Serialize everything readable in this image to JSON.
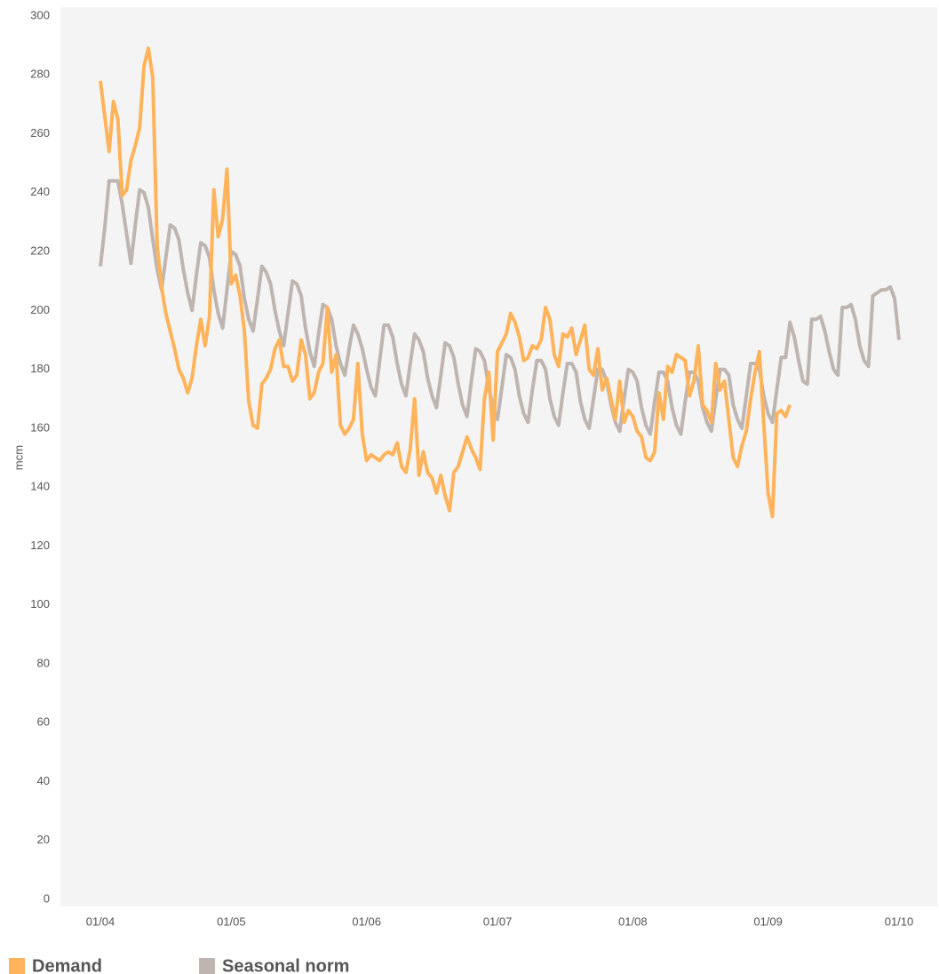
{
  "chart_data": {
    "type": "line",
    "y_label": "mcm",
    "categories": [
      "01/04",
      null,
      null,
      null,
      null,
      null,
      null,
      null,
      null,
      null,
      null,
      null,
      null,
      null,
      null,
      null,
      null,
      null,
      null,
      null,
      null,
      null,
      null,
      null,
      null,
      null,
      null,
      null,
      null,
      null,
      "01/05",
      null,
      null,
      null,
      null,
      null,
      null,
      null,
      null,
      null,
      null,
      null,
      null,
      null,
      null,
      null,
      null,
      null,
      null,
      null,
      null,
      null,
      null,
      null,
      null,
      null,
      null,
      null,
      null,
      null,
      null,
      "01/06",
      null,
      null,
      null,
      null,
      null,
      null,
      null,
      null,
      null,
      null,
      null,
      null,
      null,
      null,
      null,
      null,
      null,
      null,
      null,
      null,
      null,
      null,
      null,
      null,
      null,
      null,
      null,
      null,
      null,
      "01/07",
      null,
      null,
      null,
      null,
      null,
      null,
      null,
      null,
      null,
      null,
      null,
      null,
      null,
      null,
      null,
      null,
      null,
      null,
      null,
      null,
      null,
      null,
      null,
      null,
      null,
      null,
      null,
      null,
      null,
      null,
      "01/08",
      null,
      null,
      null,
      null,
      null,
      null,
      null,
      null,
      null,
      null,
      null,
      null,
      null,
      null,
      null,
      null,
      null,
      null,
      null,
      null,
      null,
      null,
      null,
      null,
      null,
      null,
      null,
      null,
      null,
      null,
      "01/09",
      null,
      null,
      null,
      null,
      null,
      null,
      null,
      null,
      null,
      null,
      null,
      null,
      null,
      null,
      null,
      null,
      null,
      null,
      null,
      null,
      null,
      null,
      null,
      null,
      null,
      null,
      null,
      null,
      null,
      "01/10"
    ],
    "series": [
      {
        "name": "Demand",
        "color": "#ffb35a",
        "values": [
          278,
          266,
          254,
          271,
          265,
          239,
          241,
          251,
          256,
          262,
          283,
          289,
          279,
          222,
          208,
          199,
          193,
          187,
          180,
          177,
          172,
          177,
          188,
          197,
          188,
          198,
          241,
          225,
          231,
          248,
          209,
          212,
          205,
          193,
          169,
          161,
          160,
          175,
          177,
          180,
          187,
          190,
          181,
          181,
          176,
          178,
          190,
          185,
          170,
          172,
          179,
          182,
          201,
          179,
          185,
          161,
          158,
          160,
          163,
          182,
          158,
          149,
          151,
          150,
          149,
          151,
          152,
          151,
          155,
          147,
          145,
          153,
          170,
          144,
          152,
          145,
          143,
          138,
          144,
          137,
          132,
          145,
          147,
          152,
          157,
          153,
          150,
          146,
          170,
          179,
          156,
          186,
          189,
          192,
          199,
          196,
          191,
          183,
          184,
          188,
          187,
          190,
          201,
          197,
          185,
          181,
          192,
          191,
          194,
          185,
          190,
          195,
          180,
          178,
          187,
          173,
          177,
          170,
          163,
          176,
          162,
          166,
          164,
          159,
          157,
          150,
          149,
          152,
          172,
          163,
          181,
          179,
          185,
          184,
          183,
          171,
          176,
          188,
          168,
          166,
          162,
          182,
          173,
          176,
          163,
          150,
          147,
          154,
          159,
          170,
          179,
          186,
          162,
          138,
          130,
          165,
          166,
          164,
          168,
          null,
          null,
          null,
          null,
          null,
          null,
          null,
          null,
          null,
          null,
          null,
          null,
          null,
          null,
          null,
          null,
          null,
          null,
          null,
          null,
          null,
          null,
          null,
          null,
          null
        ]
      },
      {
        "name": "Seasonal norm",
        "color": "#bfb5b0",
        "values": [
          215,
          228,
          244,
          244,
          244,
          236,
          226,
          216,
          229,
          241,
          240,
          235,
          224,
          214,
          207,
          218,
          229,
          228,
          224,
          214,
          206,
          200,
          212,
          223,
          222,
          218,
          207,
          199,
          194,
          207,
          220,
          219,
          215,
          204,
          197,
          193,
          204,
          215,
          213,
          209,
          200,
          193,
          188,
          199,
          210,
          209,
          205,
          194,
          186,
          181,
          192,
          202,
          201,
          197,
          188,
          182,
          178,
          187,
          195,
          192,
          187,
          180,
          174,
          171,
          183,
          195,
          195,
          191,
          182,
          175,
          171,
          182,
          192,
          190,
          186,
          177,
          171,
          167,
          178,
          189,
          188,
          184,
          175,
          168,
          164,
          176,
          187,
          186,
          183,
          174,
          167,
          163,
          174,
          185,
          184,
          180,
          171,
          165,
          162,
          173,
          183,
          183,
          180,
          170,
          164,
          161,
          172,
          182,
          182,
          179,
          169,
          163,
          160,
          170,
          180,
          180,
          176,
          168,
          162,
          159,
          170,
          180,
          179,
          176,
          167,
          161,
          158,
          169,
          179,
          179,
          176,
          167,
          161,
          158,
          169,
          179,
          179,
          176,
          167,
          162,
          159,
          170,
          180,
          180,
          178,
          168,
          163,
          160,
          171,
          182,
          182,
          180,
          171,
          165,
          162,
          173,
          184,
          184,
          196,
          191,
          183,
          176,
          175,
          197,
          197,
          198,
          193,
          186,
          180,
          178,
          201,
          201,
          202,
          197,
          188,
          183,
          181,
          205,
          206,
          207,
          207,
          208,
          204,
          190
        ]
      }
    ],
    "ylim": [
      0,
      300
    ],
    "yticks": [
      0,
      20,
      40,
      60,
      80,
      100,
      120,
      140,
      160,
      180,
      200,
      220,
      240,
      260,
      280,
      300
    ],
    "grid": false,
    "legend": "bottom"
  }
}
